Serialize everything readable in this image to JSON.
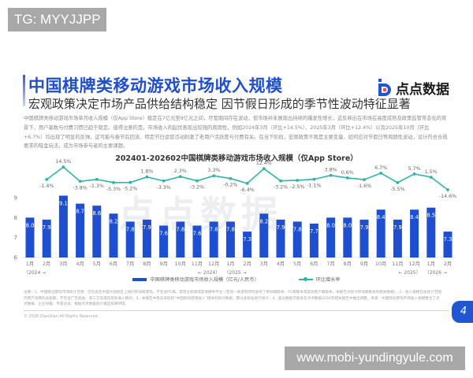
{
  "overlay": {
    "tg_label": "TG: MYYJJPP",
    "url_label": "www.mobi-yundingyule.com"
  },
  "header": {
    "title": "中国棋牌类移动游戏市场收入规模",
    "subtitle": "宏观政策决定市场产品供给结构稳定 因节假日形成的季节性波动特征显著",
    "logo_text": "点点数据"
  },
  "body": {
    "paragraph": "中国棋牌类移动游戏市场单月收入规模（仅App Store）稳定在7亿元至9亿元之间，尽管期间存在波动，但市场并未展现出持续的爆发性增长，这反映出在市场在高度成熟及政策监管常态化的背景下，用户基数与付费习惯已趋于稳定。值得注意的是，市场收入的起伏表现出较强的周期性，例如2024年3月（环比+14.5%）、2025年3月（环比+12.4%）以及2025年10月（环比+6.7%）均出现了明显的反弹，这可能与春节后回流、特定节日运营活动刺激了老用户活跃度与付费有关。在当下阶段，宏观政策不再是主要变量，如何应对节假日等周期性波动，设计符合合规要求的吸金玩法，成为市场参与者的主要课题。"
  },
  "chart_data": {
    "type": "bar",
    "title": "202401-202602中国棋牌类移动游戏市场收入规模（仅App Store）",
    "xlabel": "",
    "ylabel": "",
    "ylim": [
      6,
      9
    ],
    "yticks": [
      "6",
      "7",
      "8",
      "9"
    ],
    "grid": false,
    "legend_position": "bottom",
    "categories": [
      "1月",
      "2月",
      "3月",
      "4月",
      "5月",
      "6月",
      "7月",
      "8月",
      "9月",
      "10月",
      "11月",
      "12月",
      "1月",
      "2月",
      "3月",
      "4月",
      "5月",
      "6月",
      "7月",
      "8月",
      "9月",
      "10月",
      "11月",
      "12月",
      "1月",
      "2月"
    ],
    "year_markers": [
      {
        "label": "（2024 →",
        "position": 0
      },
      {
        "label": "← 2024）",
        "position": 11
      },
      {
        "label": "（2025 →",
        "position": 12
      },
      {
        "label": "← 2025）",
        "position": 23
      },
      {
        "label": "（2026 →",
        "position": 24
      }
    ],
    "series": [
      {
        "name": "中国棋牌类移动游戏市场收入规模（亿元/人民币）",
        "type": "bar",
        "color": "#1f4fd1",
        "values": [
          8.0,
          7.9,
          9.1,
          8.7,
          8.6,
          8.2,
          7.8,
          7.9,
          7.6,
          7.8,
          7.6,
          7.8,
          7.8,
          7.3,
          8.2,
          7.9,
          7.8,
          7.7,
          8.0,
          8.0,
          7.9,
          8.4,
          7.9,
          8.4,
          8.5,
          7.3
        ]
      },
      {
        "name": "环比增长率",
        "type": "line",
        "color": "#2cb5a9",
        "values": [
          -1.4,
          14.5,
          -3.8,
          -1.3,
          -5.3,
          -5.2,
          1.8,
          -3.3,
          2.3,
          -3.2,
          3.3,
          -0.2,
          -6.4,
          12.4,
          -3.2,
          -2.5,
          -1.1,
          3.8,
          0.6,
          -1.6,
          6.7,
          -5.5,
          5.7,
          1.5,
          -14.6
        ],
        "labels": [
          "-1.4%",
          "14.5%",
          "-3.8%",
          "-1.3%",
          "-5.3%",
          "-5.2%",
          "1.8%",
          "-3.3%",
          "2.3%",
          "-3.2%",
          "3.3%",
          "-0.2%",
          "-6.4%",
          "12.4%",
          "-3.2%",
          "-2.5%",
          "-1.1%",
          "3.8%",
          "0.6%",
          "-1.6%",
          "6.7%",
          "-5.5%",
          "5.7%",
          "1.5%",
          "-14.6%"
        ],
        "start_index": 1
      }
    ]
  },
  "footer": {
    "notes": "注释：1、中国移动游戏市场统计范围：仅包含在中国大陆地区上线的移动端游戏，不包含PC端、游戏主机端或其他硬件平台（若同一款游戏同时发布了移动端版本、PC端版本或其他客户端版本，本报告仅统计移动端版本的相关数据）；2、收入规模包含统计范围内用户消费的总金额，不包含广告收益、第三方充值等其他收入模式；3、本报告中目前采取的“中国移动游戏收入”相关的统计数据，都以此标准进行统计；4、部分数据可能会在点点数据2026年相关报告中做出调整。来源：中国移动游戏市场收入规模整合了点点数据、企业财报、专家访谈，根据点点数据统计模型核算所得。",
    "copyright": "© 2026 DianDian.All Rights Reserved.",
    "page_number": "4"
  }
}
